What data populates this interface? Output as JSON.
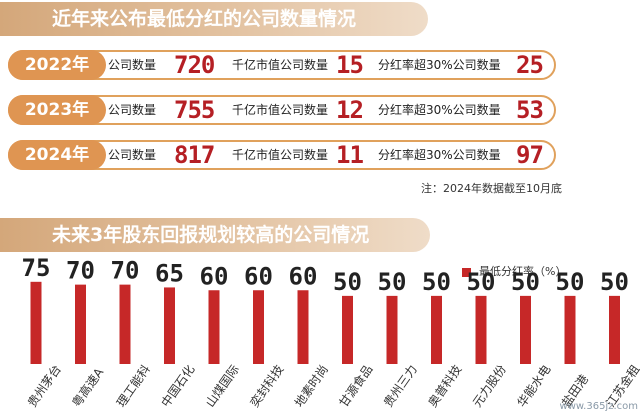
{
  "section1": {
    "title": "近年来公布最低分红的公司数量情况",
    "label_companies": "公司数量",
    "label_large_cap": "千亿市值公司数量",
    "label_payout": "分红率超30%公司数量",
    "rows": [
      {
        "year": "2022年",
        "companies": "720",
        "large_cap": "15",
        "payout_over_30": "25"
      },
      {
        "year": "2023年",
        "companies": "755",
        "large_cap": "12",
        "payout_over_30": "53"
      },
      {
        "year": "2024年",
        "companies": "817",
        "large_cap": "11",
        "payout_over_30": "97"
      }
    ],
    "note": "注：2024年数据截至10月底"
  },
  "section2": {
    "title": "未来3年股东回报规划较高的公司情况"
  },
  "watermark": "www.365jz.com",
  "colors": {
    "bar": "#c62828",
    "value_text": "#222222",
    "banner": "#d4a77a",
    "year_pill": "#df9552",
    "highlight_number": "#b51f24"
  },
  "chart_data": {
    "type": "bar",
    "legend": "最低分红率（%）",
    "legend_position": "top-right",
    "categories": [
      "贵州茅台",
      "粤高速A",
      "理工能科",
      "中国石化",
      "山煤国际",
      "奕封科技",
      "地素时尚",
      "甘源食品",
      "贵州三力",
      "奥普科技",
      "元力股份",
      "华能水电",
      "盐田港",
      "江苏金租"
    ],
    "series": [
      {
        "name": "最低分红率（%）",
        "values": [
          75,
          70,
          70,
          65,
          60,
          60,
          60,
          50,
          50,
          50,
          50,
          50,
          50,
          50
        ]
      }
    ],
    "ylim": [
      0,
      80
    ],
    "grid": false
  }
}
